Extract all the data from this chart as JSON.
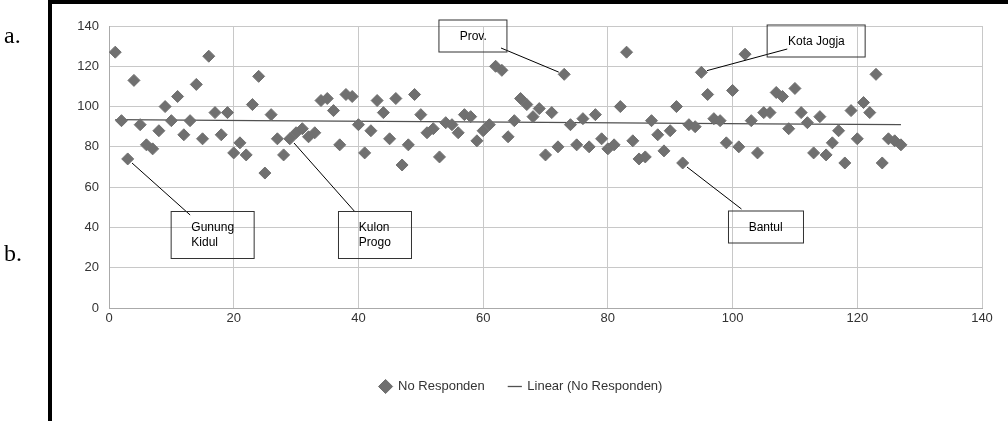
{
  "chart_data": {
    "type": "scatter",
    "xlim": [
      0,
      140
    ],
    "xticks": [
      0,
      20,
      40,
      60,
      80,
      100,
      120,
      140
    ],
    "ylim": [
      0,
      140
    ],
    "yticks": [
      0,
      20,
      40,
      60,
      80,
      100,
      120,
      140
    ],
    "grid": true,
    "legend": "bottom",
    "marker": "diamond",
    "series": [
      {
        "name": "No Responden",
        "color": "#707070",
        "x": [
          1,
          2,
          3,
          4,
          5,
          6,
          7,
          8,
          9,
          10,
          11,
          12,
          13,
          14,
          15,
          16,
          17,
          18,
          19,
          20,
          21,
          22,
          23,
          24,
          25,
          26,
          27,
          28,
          29,
          30,
          31,
          32,
          33,
          34,
          35,
          36,
          37,
          38,
          39,
          40,
          41,
          42,
          43,
          44,
          45,
          46,
          47,
          48,
          49,
          50,
          51,
          52,
          53,
          54,
          55,
          56,
          57,
          58,
          59,
          60,
          61,
          62,
          63,
          64,
          65,
          66,
          67,
          68,
          69,
          70,
          71,
          72,
          73,
          74,
          75,
          76,
          77,
          78,
          79,
          80,
          81,
          82,
          83,
          84,
          85,
          86,
          87,
          88,
          89,
          90,
          91,
          92,
          93,
          94,
          95,
          96,
          97,
          98,
          99,
          100,
          101,
          102,
          103,
          104,
          105,
          106,
          107,
          108,
          109,
          110,
          111,
          112,
          113,
          114,
          115,
          116,
          117,
          118,
          119,
          120,
          121,
          122,
          123,
          124,
          125,
          126,
          127
        ],
        "values": [
          127,
          93,
          74,
          113,
          91,
          81,
          79,
          88,
          100,
          93,
          105,
          86,
          93,
          111,
          84,
          125,
          97,
          86,
          97,
          77,
          82,
          76,
          101,
          115,
          67,
          96,
          84,
          76,
          84,
          87,
          89,
          85,
          87,
          103,
          104,
          98,
          81,
          106,
          105,
          91,
          77,
          88,
          103,
          97,
          84,
          104,
          71,
          81,
          106,
          96,
          87,
          89,
          75,
          92,
          91,
          87,
          96,
          95,
          83,
          88,
          91,
          120,
          118,
          85,
          93,
          104,
          101,
          95,
          99,
          76,
          97,
          80,
          116,
          91,
          81,
          94,
          80,
          96,
          84,
          79,
          81,
          100,
          127,
          83,
          74,
          75,
          93,
          86,
          78,
          88,
          100,
          72,
          91,
          90,
          117,
          106,
          94,
          93,
          82,
          108,
          80,
          126,
          93,
          77,
          97,
          97,
          107,
          105,
          89,
          109,
          97,
          92,
          77,
          95,
          76,
          82,
          88,
          72,
          98,
          84,
          102,
          97,
          116,
          72,
          84,
          83,
          81
        ]
      },
      {
        "name": "Linear (No Responden)",
        "type": "line",
        "color": "#505050",
        "x": [
          1,
          127
        ],
        "values": [
          93.5,
          91
        ],
        "marker": "none",
        "line_style": "solid"
      }
    ],
    "annotations": [
      {
        "text": "Gunung\nKidul",
        "x": 3,
        "y": 74
      },
      {
        "text": "Kulon\nProgo",
        "x": 29,
        "y": 84
      },
      {
        "text": "Prov.",
        "x": 73,
        "y": 116
      },
      {
        "text": "Kota Jogja",
        "x": 95,
        "y": 117
      },
      {
        "text": "Bantul",
        "x": 92,
        "y": 72
      },
      "a.",
      "b."
    ]
  }
}
